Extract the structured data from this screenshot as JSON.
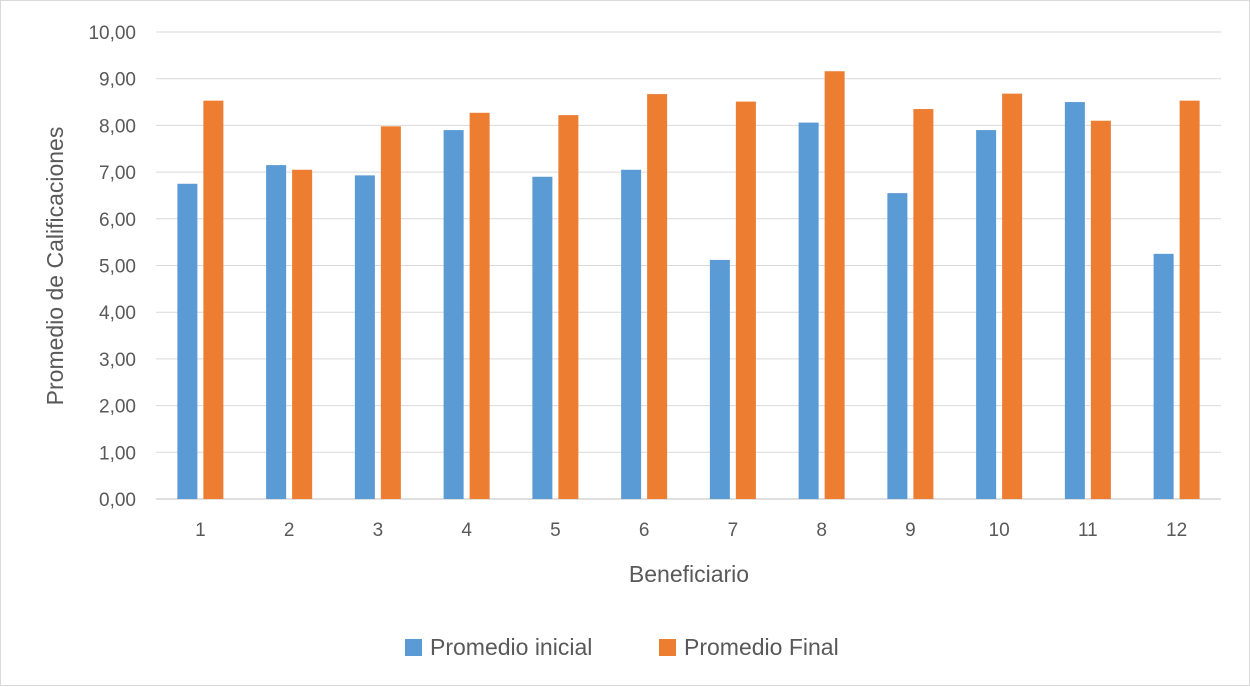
{
  "chart_data": {
    "type": "bar",
    "title": "",
    "xlabel": "Beneficiario",
    "ylabel": "Promedio de Calificaciones",
    "categories": [
      "1",
      "2",
      "3",
      "4",
      "5",
      "6",
      "7",
      "8",
      "9",
      "10",
      "11",
      "12"
    ],
    "series": [
      {
        "name": "Promedio inicial",
        "color": "#5b9bd5",
        "values": [
          6.75,
          7.15,
          6.93,
          7.9,
          6.9,
          7.05,
          5.12,
          8.06,
          6.55,
          7.9,
          8.5,
          5.25
        ]
      },
      {
        "name": "Promedio Final",
        "color": "#ed7d31",
        "values": [
          8.53,
          7.05,
          7.98,
          8.27,
          8.22,
          8.67,
          8.51,
          9.16,
          8.35,
          8.68,
          8.1,
          8.53
        ]
      }
    ],
    "ylim": [
      0,
      10
    ],
    "yticks": [
      "0,00",
      "1,00",
      "2,00",
      "3,00",
      "4,00",
      "5,00",
      "6,00",
      "7,00",
      "8,00",
      "9,00",
      "10,00"
    ],
    "grid": true,
    "legend_position": "bottom"
  }
}
